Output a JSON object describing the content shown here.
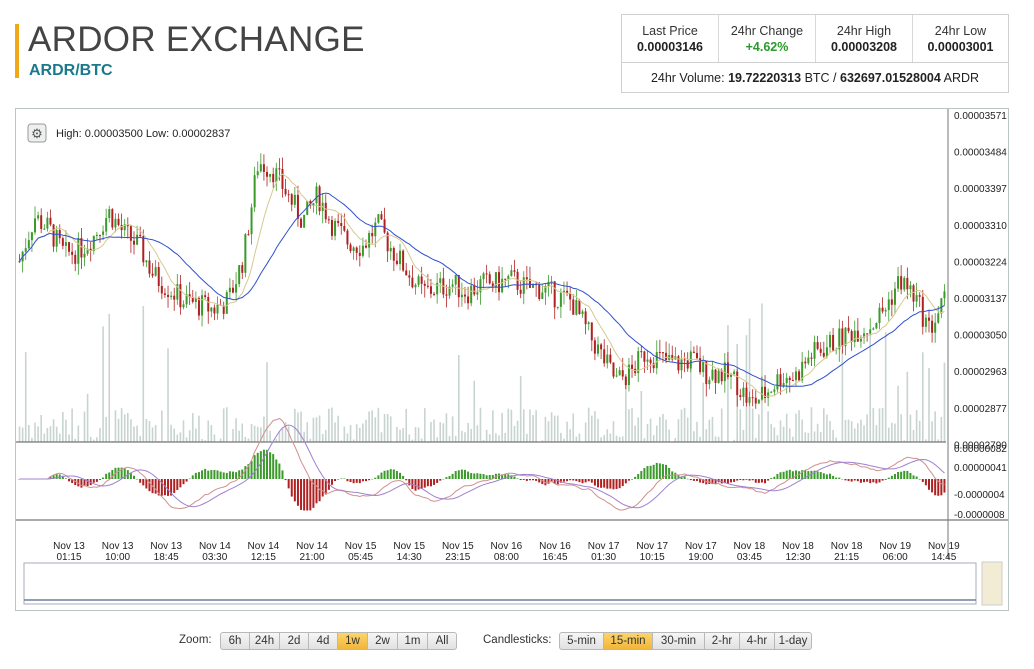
{
  "header": {
    "title": "ARDOR EXCHANGE",
    "pair": "ARDR/BTC"
  },
  "stats": {
    "last_price_label": "Last Price",
    "last_price": "0.00003146",
    "change_label": "24hr Change",
    "change": "+4.62%",
    "high_label": "24hr High",
    "high": "0.00003208",
    "low_label": "24hr Low",
    "low": "0.00003001",
    "volume_label": "24hr Volume:",
    "volume_btc": "19.72220313",
    "btc_unit": "BTC /",
    "volume_ardr": "632697.01528004",
    "ardr_unit": "ARDR"
  },
  "chart": {
    "range_text": "High: 0.00003500   Low: 0.00002837",
    "price_ticks": [
      "0.00003571",
      "0.00003484",
      "0.00003397",
      "0.00003310",
      "0.00003224",
      "0.00003137",
      "0.00003050",
      "0.00002963",
      "0.00002877",
      "0.00002790"
    ],
    "macd_ticks": [
      "0.00000082",
      "0.00000041",
      "-0.0000004",
      "-0.0000008"
    ],
    "time_ticks": [
      {
        "d": "Nov 13",
        "t": "01:15"
      },
      {
        "d": "Nov 13",
        "t": "10:00"
      },
      {
        "d": "Nov 13",
        "t": "18:45"
      },
      {
        "d": "Nov 14",
        "t": "03:30"
      },
      {
        "d": "Nov 14",
        "t": "12:15"
      },
      {
        "d": "Nov 14",
        "t": "21:00"
      },
      {
        "d": "Nov 15",
        "t": "05:45"
      },
      {
        "d": "Nov 15",
        "t": "14:30"
      },
      {
        "d": "Nov 15",
        "t": "23:15"
      },
      {
        "d": "Nov 16",
        "t": "08:00"
      },
      {
        "d": "Nov 16",
        "t": "16:45"
      },
      {
        "d": "Nov 17",
        "t": "01:30"
      },
      {
        "d": "Nov 17",
        "t": "10:15"
      },
      {
        "d": "Nov 17",
        "t": "19:00"
      },
      {
        "d": "Nov 18",
        "t": "03:45"
      },
      {
        "d": "Nov 18",
        "t": "12:30"
      },
      {
        "d": "Nov 18",
        "t": "21:15"
      },
      {
        "d": "Nov 19",
        "t": "06:00"
      },
      {
        "d": "Nov 19",
        "t": "14:45"
      }
    ],
    "colors": {
      "up": "#3a9a2a",
      "down": "#b02020",
      "ma_fast": "#d8c890",
      "ma_slow": "#3050d0",
      "macd": "#d09090",
      "signal": "#a080d0",
      "volume": "#c8d4d0"
    },
    "price_path": [
      3.224,
      3.33,
      3.3,
      3.24,
      3.25,
      3.285,
      3.34,
      3.29,
      3.26,
      3.19,
      3.16,
      3.13,
      3.12,
      3.11,
      3.13,
      3.23,
      3.46,
      3.44,
      3.38,
      3.32,
      3.38,
      3.31,
      3.27,
      3.26,
      3.31,
      3.25,
      3.2,
      3.15,
      3.16,
      3.17,
      3.15,
      3.17,
      3.17,
      3.18,
      3.16,
      3.16,
      3.14,
      3.13,
      3.06,
      3.0,
      2.94,
      2.96,
      3.01,
      2.99,
      2.98,
      2.99,
      2.96,
      2.96,
      2.94,
      2.885,
      2.91,
      2.95,
      2.95,
      3.0,
      3.02,
      3.04,
      3.06,
      3.07,
      3.11,
      3.18,
      3.14,
      3.06,
      3.13
    ]
  },
  "zoom": {
    "label": "Zoom:",
    "options": [
      "6h",
      "24h",
      "2d",
      "4d",
      "1w",
      "2w",
      "1m",
      "All"
    ],
    "active": "1w"
  },
  "candles": {
    "label": "Candlesticks:",
    "options": [
      "5-min",
      "15-min",
      "30-min",
      "2-hr",
      "4-hr",
      "1-day"
    ],
    "active": "15-min"
  }
}
